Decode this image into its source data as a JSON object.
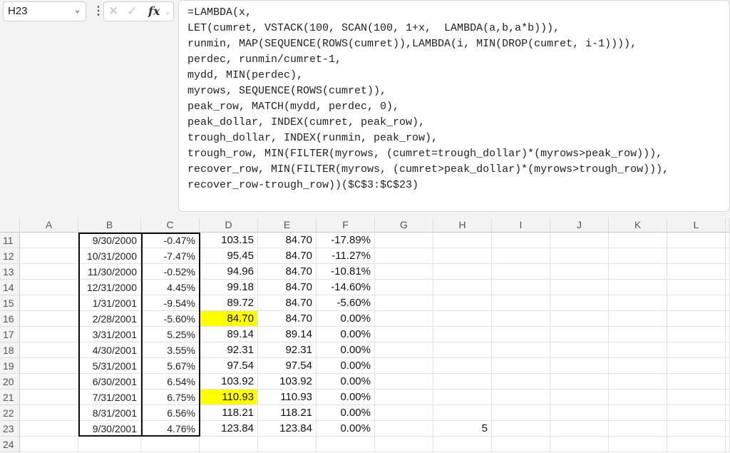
{
  "name_box": "H23",
  "icons": {
    "name_box": "chevron-down-icon",
    "menu": "vertical-dots-icon",
    "cancel": "close-icon",
    "enter": "check-icon",
    "fx": "function-icon",
    "fx_expand": "chevron-down-icon"
  },
  "formula_bar": {
    "fx_label": "fx",
    "formula": "=LAMBDA(x,\nLET(cumret, VSTACK(100, SCAN(100, 1+x,  LAMBDA(a,b,a*b))),\nrunmin, MAP(SEQUENCE(ROWS(cumret)),LAMBDA(i, MIN(DROP(cumret, i-1)))),\nperdec, runmin/cumret-1,\nmydd, MIN(perdec),\nmyrows, SEQUENCE(ROWS(cumret)),\npeak_row, MATCH(mydd, perdec, 0),\npeak_dollar, INDEX(cumret, peak_row),\ntrough_dollar, INDEX(runmin, peak_row),\ntrough_row, MIN(FILTER(myrows, (cumret=trough_dollar)*(myrows>peak_row))),\nrecover_row, MIN(FILTER(myrows, (cumret>peak_dollar)*(myrows>trough_row))),\nrecover_row-trough_row))($C$3:$C$23)"
  },
  "columns": [
    "A",
    "B",
    "C",
    "D",
    "E",
    "F",
    "G",
    "H",
    "I",
    "J",
    "K",
    "L"
  ],
  "highlight_color": "#ffff00",
  "rows": [
    {
      "n": "11",
      "B": "9/30/2000",
      "C": "-0.47%",
      "D": "103.15",
      "E": "84.70",
      "F": "-17.89%"
    },
    {
      "n": "12",
      "B": "10/31/2000",
      "C": "-7.47%",
      "D": "95.45",
      "E": "84.70",
      "F": "-11.27%"
    },
    {
      "n": "13",
      "B": "11/30/2000",
      "C": "-0.52%",
      "D": "94.96",
      "E": "84.70",
      "F": "-10.81%"
    },
    {
      "n": "14",
      "B": "12/31/2000",
      "C": "4.45%",
      "D": "99.18",
      "E": "84.70",
      "F": "-14.60%"
    },
    {
      "n": "15",
      "B": "1/31/2001",
      "C": "-9.54%",
      "D": "89.72",
      "E": "84.70",
      "F": "-5.60%"
    },
    {
      "n": "16",
      "B": "2/28/2001",
      "C": "-5.60%",
      "D": "84.70",
      "E": "84.70",
      "F": "0.00%",
      "hl": true
    },
    {
      "n": "17",
      "B": "3/31/2001",
      "C": "5.25%",
      "D": "89.14",
      "E": "89.14",
      "F": "0.00%"
    },
    {
      "n": "18",
      "B": "4/30/2001",
      "C": "3.55%",
      "D": "92.31",
      "E": "92.31",
      "F": "0.00%"
    },
    {
      "n": "19",
      "B": "5/31/2001",
      "C": "5.67%",
      "D": "97.54",
      "E": "97.54",
      "F": "0.00%"
    },
    {
      "n": "20",
      "B": "6/30/2001",
      "C": "6.54%",
      "D": "103.92",
      "E": "103.92",
      "F": "0.00%"
    },
    {
      "n": "21",
      "B": "7/31/2001",
      "C": "6.75%",
      "D": "110.93",
      "E": "110.93",
      "F": "0.00%",
      "hl": true
    },
    {
      "n": "22",
      "B": "8/31/2001",
      "C": "6.56%",
      "D": "118.21",
      "E": "118.21",
      "F": "0.00%"
    },
    {
      "n": "23",
      "B": "9/30/2001",
      "C": "4.76%",
      "D": "123.84",
      "E": "123.84",
      "F": "0.00%",
      "H": "5"
    },
    {
      "n": "24"
    }
  ]
}
